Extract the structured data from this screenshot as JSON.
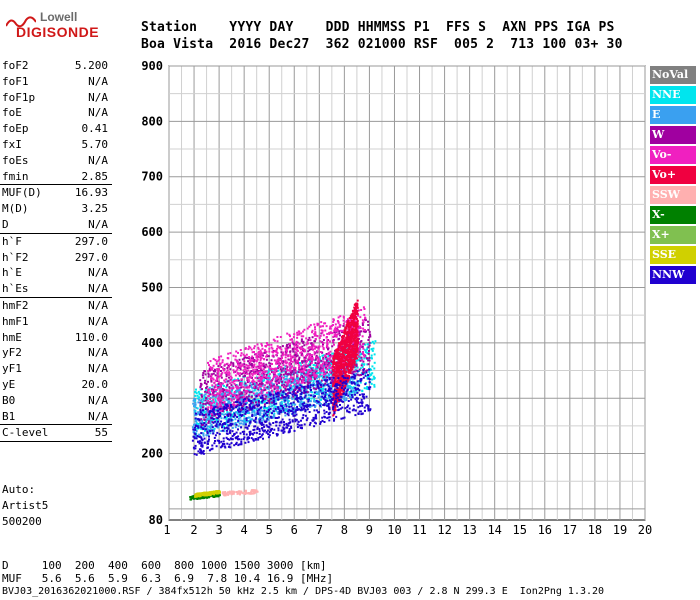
{
  "logo": {
    "line1": "Lowell",
    "line2": "DIGISONDE"
  },
  "header": {
    "line1": "Station    YYYY DAY    DDD HHMMSS P1  FFS S  AXN PPS IGA PS",
    "line2": "Boa Vista  2016 Dec27  362 021000 RSF  005 2  713 100 03+ 30"
  },
  "params": {
    "group1": [
      {
        "name": "foF2",
        "value": "5.200"
      },
      {
        "name": "foF1",
        "value": "N/A"
      },
      {
        "name": "foF1p",
        "value": "N/A"
      },
      {
        "name": "foE",
        "value": "N/A"
      },
      {
        "name": "foEp",
        "value": "0.41"
      },
      {
        "name": "fxI",
        "value": "5.70"
      },
      {
        "name": "foEs",
        "value": "N/A"
      },
      {
        "name": "fmin",
        "value": "2.85"
      }
    ],
    "group2": [
      {
        "name": "MUF(D)",
        "value": "16.93"
      },
      {
        "name": "M(D)",
        "value": "3.25"
      },
      {
        "name": "D",
        "value": "N/A"
      }
    ],
    "group3": [
      {
        "name": "h`F",
        "value": "297.0"
      },
      {
        "name": "h`F2",
        "value": "297.0"
      },
      {
        "name": "h`E",
        "value": "N/A"
      },
      {
        "name": "h`Es",
        "value": "N/A"
      }
    ],
    "group4": [
      {
        "name": "hmF2",
        "value": "N/A"
      },
      {
        "name": "hmF1",
        "value": "N/A"
      },
      {
        "name": "hmE",
        "value": "110.0"
      },
      {
        "name": "yF2",
        "value": "N/A"
      },
      {
        "name": "yF1",
        "value": "N/A"
      },
      {
        "name": "yE",
        "value": "20.0"
      },
      {
        "name": "B0",
        "value": "N/A"
      },
      {
        "name": "B1",
        "value": "N/A"
      }
    ],
    "group5": [
      {
        "name": "C-level",
        "value": "55"
      }
    ]
  },
  "auto": {
    "line1": "Auto:",
    "line2": "Artist5",
    "line3": "500200"
  },
  "footer": {
    "dist_row": "D     100  200  400  600  800 1000 1500 3000 [km]",
    "muf_row": "MUF   5.6  5.6  5.9  6.3  6.9  7.8 10.4 16.9 [MHz]",
    "file_row": "BVJ03_2016362021000.RSF / 384fx512h 50 kHz 2.5 km / DPS-4D BVJ03 003 / 2.8 N 299.3 E  Ion2Png 1.3.20"
  },
  "legend": [
    {
      "label": "NoVal",
      "color": "#808080"
    },
    {
      "label": "NNE",
      "color": "#00e5ee"
    },
    {
      "label": "E",
      "color": "#3aa0f0"
    },
    {
      "label": "W",
      "color": "#a000a0"
    },
    {
      "label": "Vo-",
      "color": "#f020c0"
    },
    {
      "label": "Vo+",
      "color": "#f00040"
    },
    {
      "label": "SSW",
      "color": "#ffb0b0"
    },
    {
      "label": "X-",
      "color": "#008000"
    },
    {
      "label": "X+",
      "color": "#80c050"
    },
    {
      "label": "SSE",
      "color": "#d0d000"
    },
    {
      "label": "NNW",
      "color": "#2000d0"
    }
  ],
  "chart_data": {
    "type": "scatter",
    "title": "",
    "xlabel": "",
    "ylabel": "",
    "xlim": [
      1,
      20
    ],
    "ylim": [
      80,
      900
    ],
    "x_ticks": [
      1,
      2,
      3,
      4,
      5,
      6,
      7,
      8,
      9,
      10,
      11,
      12,
      13,
      14,
      15,
      16,
      17,
      18,
      19,
      20
    ],
    "y_ticks": [
      80,
      200,
      300,
      400,
      500,
      600,
      700,
      800,
      900
    ],
    "grid": true,
    "traces": [
      {
        "name": "NNE",
        "color": "#00e5ee",
        "x_range": [
          2.0,
          9.2
        ],
        "y_range": [
          260,
          450
        ]
      },
      {
        "name": "E",
        "color": "#3aa0f0",
        "x_range": [
          1.9,
          8.5
        ],
        "y_range": [
          250,
          420
        ]
      },
      {
        "name": "W",
        "color": "#a000a0",
        "x_range": [
          2.2,
          9.0
        ],
        "y_range": [
          280,
          500
        ]
      },
      {
        "name": "Vo-",
        "color": "#f020c0",
        "x_range": [
          2.5,
          8.8
        ],
        "y_range": [
          300,
          520
        ]
      },
      {
        "name": "Vo+",
        "color": "#f00040",
        "x_range": [
          7.5,
          8.5
        ],
        "y_range": [
          300,
          540
        ]
      },
      {
        "name": "SSW",
        "color": "#ffb0b0",
        "x_range": [
          2.2,
          4.5
        ],
        "y_range": [
          125,
          140
        ]
      },
      {
        "name": "X-",
        "color": "#008000",
        "x_range": [
          1.8,
          3.0
        ],
        "y_range": [
          120,
          135
        ]
      },
      {
        "name": "SSE",
        "color": "#d0d000",
        "x_range": [
          2.0,
          3.0
        ],
        "y_range": [
          125,
          138
        ]
      },
      {
        "name": "NNW",
        "color": "#2000d0",
        "x_range": [
          1.9,
          9.0
        ],
        "y_range": [
          220,
          400
        ]
      }
    ]
  }
}
